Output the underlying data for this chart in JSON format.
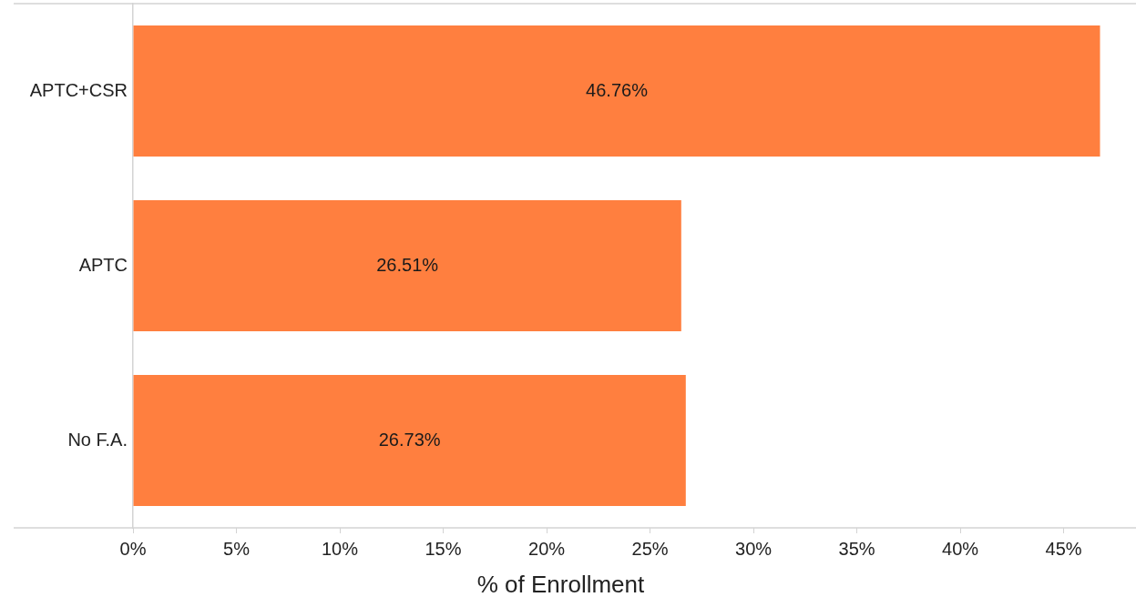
{
  "chart_data": {
    "type": "bar",
    "orientation": "horizontal",
    "xlabel": "% of Enrollment",
    "categories": [
      "APTC+CSR",
      "APTC",
      "No F.A."
    ],
    "values": [
      46.76,
      26.51,
      26.73
    ],
    "value_labels": [
      "46.76%",
      "26.51%",
      "26.73%"
    ],
    "color": "#ff7f3f",
    "xlim": [
      0,
      48.5
    ],
    "xticks": [
      {
        "value": 0,
        "label": "0%"
      },
      {
        "value": 5,
        "label": "5%"
      },
      {
        "value": 10,
        "label": "10%"
      },
      {
        "value": 15,
        "label": "15%"
      },
      {
        "value": 20,
        "label": "20%"
      },
      {
        "value": 25,
        "label": "25%"
      },
      {
        "value": 30,
        "label": "30%"
      },
      {
        "value": 35,
        "label": "35%"
      },
      {
        "value": 40,
        "label": "40%"
      },
      {
        "value": 45,
        "label": "45%"
      }
    ],
    "grid": false
  }
}
